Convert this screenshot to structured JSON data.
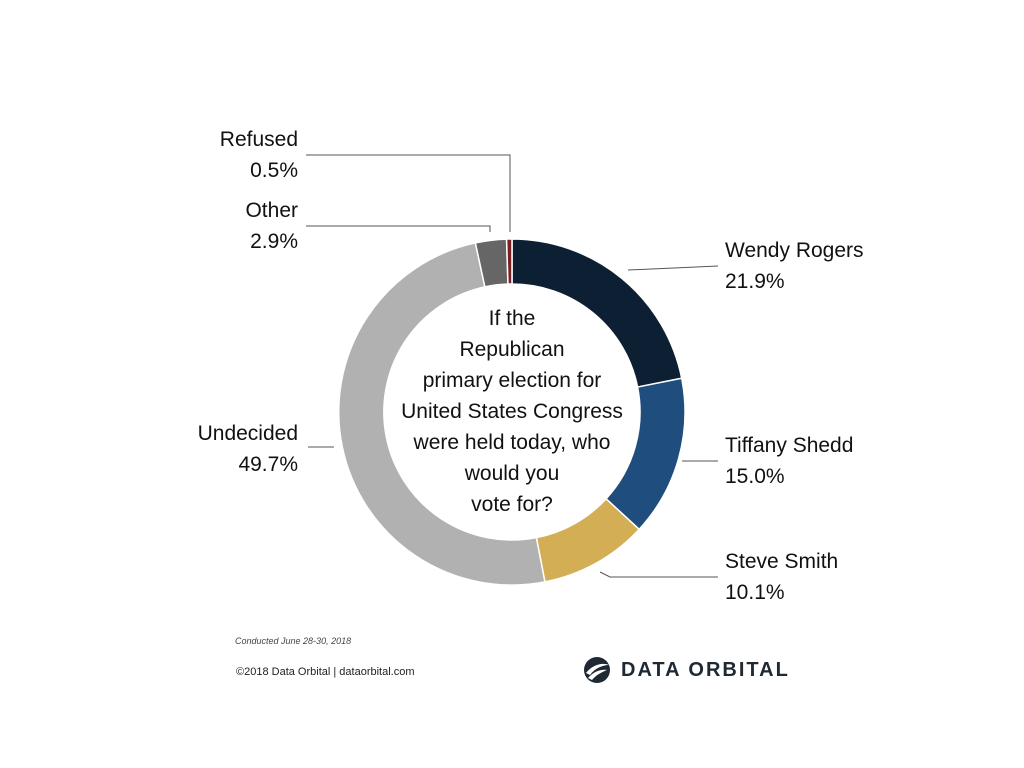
{
  "chart_data": {
    "type": "pie",
    "variant": "donut",
    "center_question": [
      "If the",
      "Republican",
      "primary election for",
      "United States Congress",
      "were held today, who",
      "would you",
      "vote for?"
    ],
    "slices": [
      {
        "name": "Wendy Rogers",
        "value_label": "21.9%",
        "value": 21.9,
        "color": "#0d1f33",
        "label_side": "right"
      },
      {
        "name": "Tiffany Shedd",
        "value_label": "15.0%",
        "value": 15.0,
        "color": "#1f4d7d",
        "label_side": "right"
      },
      {
        "name": "Steve Smith",
        "value_label": "10.1%",
        "value": 10.1,
        "color": "#d4ae55",
        "label_side": "right"
      },
      {
        "name": "Undecided",
        "value_label": "49.7%",
        "value": 49.7,
        "color": "#b2b1b2",
        "label_side": "left"
      },
      {
        "name": "Other",
        "value_label": "2.9%",
        "value": 2.9,
        "color": "#666666",
        "label_side": "left"
      },
      {
        "name": "Refused",
        "value_label": "0.5%",
        "value": 0.5,
        "color": "#7a1f24",
        "label_side": "left"
      }
    ]
  },
  "footer": {
    "conducted": "Conducted June 28-30, 2018",
    "copyright": "©2018 Data Orbital | dataorbital.com",
    "brand": "DATA ORBITAL"
  },
  "colors": {
    "leader_line": "#555555",
    "logo": "#1f2933"
  }
}
